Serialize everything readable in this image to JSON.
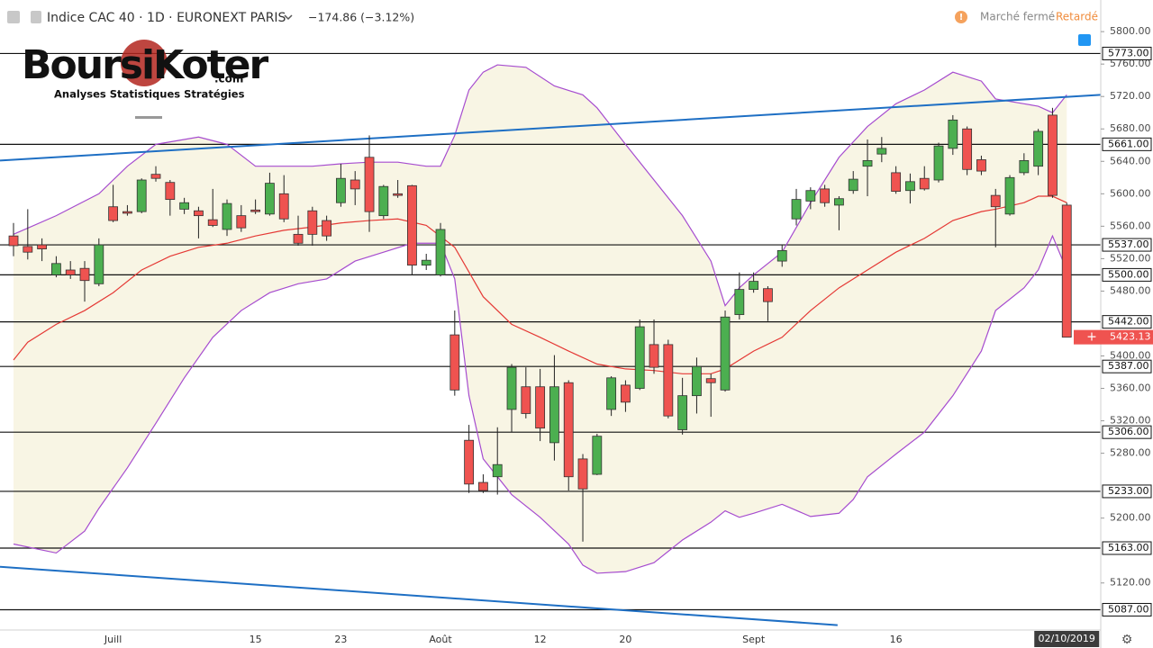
{
  "header": {
    "symbol": "Indice CAC 40 · 1D · EURONEXT PARIS",
    "change": "−174.86 (−3.12%)",
    "market_status": "Marché fermé",
    "delay": "Retardé"
  },
  "logo": {
    "name": "BoursiKoter",
    "domain": ".com",
    "tagline": "Analyses Statistiques Stratégies"
  },
  "chart_data": {
    "type": "candlestick",
    "categories": [
      null,
      null,
      null,
      null,
      null,
      null,
      null,
      "Juill",
      null,
      null,
      null,
      null,
      null,
      null,
      null,
      null,
      null,
      "15",
      null,
      null,
      null,
      null,
      null,
      "23",
      null,
      null,
      null,
      null,
      null,
      null,
      "Août",
      null,
      null,
      null,
      null,
      null,
      null,
      "12",
      null,
      null,
      null,
      null,
      null,
      "20",
      null,
      null,
      null,
      null,
      null,
      null,
      null,
      null,
      "Sept",
      null,
      null,
      null,
      null,
      null,
      null,
      null,
      null,
      null,
      "16",
      null,
      null,
      null,
      null,
      null,
      null,
      null,
      null,
      null,
      null,
      null,
      "02/10/2019"
    ],
    "open": [
      5548,
      5535,
      5537,
      5500,
      5506,
      5508,
      5489,
      5584,
      5578,
      5578,
      5624,
      5614,
      5581,
      5579,
      5568,
      5556,
      5573,
      5580,
      5575,
      5600,
      5550,
      5579,
      5567,
      5589,
      5617,
      5645,
      5573,
      5600,
      5610,
      5512,
      5500,
      5426,
      5296,
      5244,
      5251,
      5334,
      5362,
      5362,
      5293,
      5367,
      5273,
      5254,
      5334,
      5364,
      5360,
      5414,
      5414,
      5309,
      5351,
      5372,
      5358,
      5451,
      5482,
      5483,
      5517,
      5569,
      5591,
      5606,
      5586,
      5604,
      5634,
      5649,
      5626,
      5604,
      5619,
      5617,
      5656,
      5680,
      5642,
      5598,
      5575,
      5626,
      5634,
      5697,
      5586
    ],
    "high": [
      5564,
      5581,
      5545,
      5523,
      5517,
      5517,
      5545,
      5611,
      5586,
      5619,
      5634,
      5617,
      5595,
      5584,
      5606,
      5593,
      5586,
      5593,
      5626,
      5623,
      5573,
      5584,
      5573,
      5637,
      5628,
      5672,
      5611,
      5617,
      5611,
      5526,
      5564,
      5456,
      5315,
      5254,
      5312,
      5390,
      5386,
      5384,
      5401,
      5370,
      5279,
      5304,
      5375,
      5370,
      5445,
      5445,
      5420,
      5373,
      5398,
      5378,
      5456,
      5503,
      5503,
      5486,
      5537,
      5606,
      5608,
      5611,
      5597,
      5628,
      5667,
      5670,
      5634,
      5625,
      5634,
      5663,
      5697,
      5683,
      5647,
      5606,
      5623,
      5650,
      5680,
      5706,
      5589
    ],
    "low": [
      5523,
      5519,
      5517,
      5497,
      5495,
      5467,
      5486,
      5565,
      5573,
      5576,
      5615,
      5573,
      5575,
      5545,
      5559,
      5548,
      5553,
      5575,
      5573,
      5565,
      5536,
      5536,
      5542,
      5584,
      5586,
      5553,
      5569,
      5595,
      5500,
      5506,
      5498,
      5351,
      5231,
      5231,
      5229,
      5306,
      5323,
      5295,
      5271,
      5234,
      5171,
      5253,
      5326,
      5331,
      5358,
      5378,
      5323,
      5303,
      5329,
      5325,
      5356,
      5445,
      5478,
      5443,
      5510,
      5561,
      5581,
      5584,
      5555,
      5600,
      5597,
      5639,
      5600,
      5588,
      5604,
      5614,
      5648,
      5623,
      5623,
      5534,
      5573,
      5623,
      5623,
      5595,
      5426
    ],
    "close": [
      5536,
      5528,
      5532,
      5514,
      5500,
      5493,
      5537,
      5567,
      5576,
      5617,
      5619,
      5593,
      5589,
      5573,
      5561,
      5588,
      5558,
      5578,
      5613,
      5569,
      5539,
      5550,
      5548,
      5619,
      5606,
      5578,
      5609,
      5598,
      5512,
      5518,
      5556,
      5358,
      5242,
      5234,
      5266,
      5386,
      5329,
      5311,
      5362,
      5251,
      5236,
      5301,
      5373,
      5343,
      5436,
      5386,
      5326,
      5351,
      5387,
      5367,
      5448,
      5482,
      5492,
      5467,
      5530,
      5593,
      5604,
      5589,
      5594,
      5618,
      5641,
      5656,
      5603,
      5615,
      5606,
      5659,
      5691,
      5630,
      5628,
      5584,
      5620,
      5641,
      5677,
      5598,
      5423.13
    ],
    "last_label": "5423.13",
    "up_color": "#4caf50",
    "down_color": "#ef5350",
    "lines": [
      {
        "color": "#a64ccf",
        "x": [
          0,
          3,
          6,
          8,
          10,
          13,
          15,
          17,
          19,
          21,
          23,
          25,
          27,
          29,
          30,
          31,
          32,
          33,
          34,
          36,
          38,
          40,
          41,
          43,
          45,
          47,
          49,
          50,
          51,
          52,
          54,
          56,
          58,
          60,
          62,
          64,
          66,
          68,
          69,
          71,
          72,
          73,
          74
        ],
        "values": [
          5550,
          5573,
          5600,
          5634,
          5661,
          5670,
          5661,
          5634,
          5634,
          5634,
          5637,
          5639,
          5639,
          5634,
          5634,
          5672,
          5728,
          5750,
          5759,
          5756,
          5733,
          5722,
          5706,
          5661,
          5617,
          5573,
          5517,
          5462,
          5484,
          5500,
          5528,
          5589,
          5645,
          5683,
          5711,
          5728,
          5750,
          5739,
          5717,
          5711,
          5708,
          5700,
          5722
        ]
      },
      {
        "color": "#e53935",
        "x": [
          0,
          1,
          3,
          5,
          7,
          9,
          11,
          13,
          15,
          17,
          19,
          21,
          23,
          25,
          27,
          29,
          31,
          33,
          35,
          37,
          39,
          41,
          43,
          45,
          47,
          49,
          50,
          52,
          54,
          56,
          58,
          60,
          62,
          64,
          66,
          68,
          69,
          71,
          72,
          73,
          74
        ],
        "values": [
          5395,
          5417,
          5439,
          5456,
          5478,
          5506,
          5523,
          5534,
          5539,
          5548,
          5555,
          5559,
          5564,
          5567,
          5569,
          5561,
          5534,
          5473,
          5439,
          5423,
          5406,
          5390,
          5384,
          5382,
          5378,
          5378,
          5384,
          5406,
          5423,
          5456,
          5484,
          5506,
          5528,
          5545,
          5567,
          5578,
          5581,
          5589,
          5597,
          5597,
          5589
        ]
      },
      {
        "color": "#a64ccf",
        "x": [
          0,
          3,
          5,
          6,
          8,
          10,
          12,
          14,
          16,
          18,
          20,
          22,
          24,
          26,
          28,
          30,
          31,
          32,
          33,
          35,
          37,
          39,
          40,
          41,
          43,
          45,
          47,
          49,
          50,
          51,
          52,
          54,
          56,
          58,
          59,
          60,
          62,
          64,
          66,
          68,
          69,
          71,
          72,
          73,
          74
        ],
        "values": [
          5168,
          5157,
          5184,
          5212,
          5262,
          5317,
          5373,
          5423,
          5456,
          5478,
          5489,
          5495,
          5517,
          5528,
          5539,
          5539,
          5495,
          5351,
          5273,
          5229,
          5201,
          5168,
          5142,
          5132,
          5134,
          5145,
          5173,
          5195,
          5209,
          5201,
          5206,
          5217,
          5202,
          5206,
          5223,
          5251,
          5279,
          5306,
          5351,
          5406,
          5456,
          5484,
          5506,
          5548,
          5506
        ]
      }
    ],
    "band_fill": "#f8f5e4",
    "trendlines": [
      {
        "color": "#1e6fc4",
        "x": [
          -0.95,
          76.39
        ],
        "values": [
          5641,
          5722
        ]
      },
      {
        "color": "#1e6fc4",
        "x": [
          -0.95,
          57.9
        ],
        "values": [
          5140,
          5068
        ]
      }
    ],
    "levels": [
      {
        "value": 5773,
        "label": "5773.00"
      },
      {
        "value": 5661,
        "label": "5661.00"
      },
      {
        "value": 5537,
        "label": "5537.00"
      },
      {
        "value": 5500,
        "label": "5500.00"
      },
      {
        "value": 5442,
        "label": "5442.00"
      },
      {
        "value": 5387,
        "label": "5387.00"
      },
      {
        "value": 5306,
        "label": "5306.00"
      },
      {
        "value": 5233,
        "label": "5233.00"
      },
      {
        "value": 5163,
        "label": "5163.00"
      },
      {
        "value": 5087,
        "label": "5087.00"
      }
    ],
    "xlim": [
      -0.95,
      76.39
    ],
    "ylim": [
      5062,
      5839
    ],
    "yticks": [
      {
        "value": 5800,
        "label": "5800.00"
      },
      {
        "value": 5760,
        "label": "5760.00"
      },
      {
        "value": 5720,
        "label": "5720.00"
      },
      {
        "value": 5680,
        "label": "5680.00"
      },
      {
        "value": 5640,
        "label": "5640.00"
      },
      {
        "value": 5600,
        "label": "5600.00"
      },
      {
        "value": 5560,
        "label": "5560.00"
      },
      {
        "value": 5520,
        "label": "5520.00"
      },
      {
        "value": 5480,
        "label": "5480.00"
      },
      {
        "value": 5400,
        "label": "5400.00"
      },
      {
        "value": 5360,
        "label": "5360.00"
      },
      {
        "value": 5320,
        "label": "5320.00"
      },
      {
        "value": 5280,
        "label": "5280.00"
      },
      {
        "value": 5200,
        "label": "5200.00"
      },
      {
        "value": 5120,
        "label": "5120.00"
      }
    ]
  }
}
